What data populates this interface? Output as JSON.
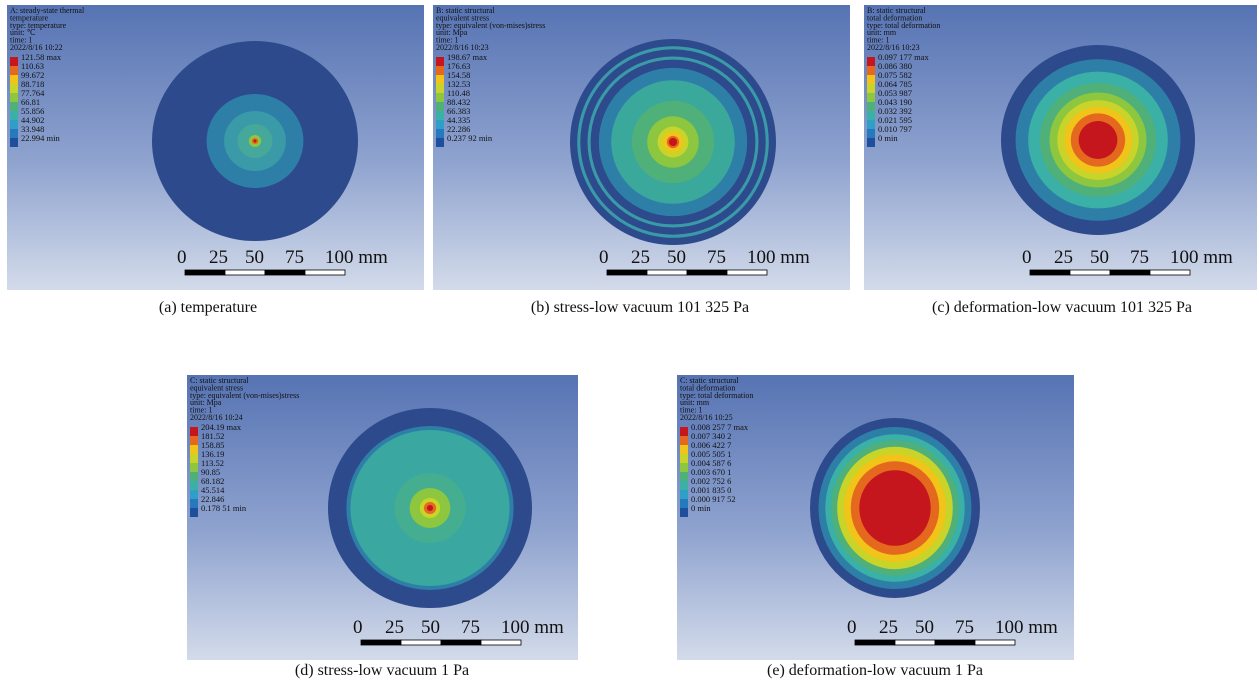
{
  "panels": [
    {
      "header": [
        "A: steady-state thermal",
        "temperature",
        "type: temperature",
        "unit: ℃",
        "time: 1",
        "2022/8/16 10:22"
      ],
      "legend": [
        "121.58 max",
        "110.63",
        "99.672",
        "88.718",
        "77.764",
        "66.81",
        "55.856",
        "44.902",
        "33.948",
        "22.994 min"
      ],
      "scale": [
        "0",
        "25",
        "50",
        "75",
        "100 mm"
      ],
      "caption": "(a) temperature"
    },
    {
      "header": [
        "B: static structural",
        "equivalent stress",
        "type: equivalent (von-mises)stress",
        "unit: Mpa",
        "time: 1",
        "2022/8/16 10:23"
      ],
      "legend": [
        "198.67 max",
        "176.63",
        "154.58",
        "132.53",
        "110.48",
        "88.432",
        "66.383",
        "44.335",
        "22.286",
        "0.237 92 min"
      ],
      "scale": [
        "0",
        "25",
        "50",
        "75",
        "100 mm"
      ],
      "caption": "(b) stress-low vacuum 101 325 Pa"
    },
    {
      "header": [
        "B: static structural",
        "total deformation",
        "type: total deformation",
        "unit: mm",
        "time: 1",
        "2022/8/16 10:23"
      ],
      "legend": [
        "0.097 177 max",
        "0.086 380",
        "0.075 582",
        "0.064 785",
        "0.053 987",
        "0.043 190",
        "0.032 392",
        "0.021 595",
        "0.010 797",
        "0 min"
      ],
      "scale": [
        "0",
        "25",
        "50",
        "75",
        "100 mm"
      ],
      "caption": "(c) deformation-low vacuum 101 325 Pa"
    },
    {
      "header": [
        "C: static structural",
        "equivalent stress",
        "type: equivalent (von-mises)stress",
        "unit: Mpa",
        "time: 1",
        "2022/8/16 10:24"
      ],
      "legend": [
        "204.19 max",
        "181.52",
        "158.85",
        "136.19",
        "113.52",
        "90.85",
        "68.182",
        "45.514",
        "22.846",
        "0.178 51 min"
      ],
      "scale": [
        "0",
        "25",
        "50",
        "75",
        "100 mm"
      ],
      "caption": "(d) stress-low vacuum 1 Pa"
    },
    {
      "header": [
        "C: static structural",
        "total deformation",
        "type: total deformation",
        "unit: mm",
        "time: 1",
        "2022/8/16 10:25"
      ],
      "legend": [
        "0.008 257 7 max",
        "0.007 340 2",
        "0.006 422 7",
        "0.005 505 1",
        "0.004 587 6",
        "0.003 670 1",
        "0.002 752 6",
        "0.001 835 0",
        "0.000 917 52",
        "0 min"
      ],
      "scale": [
        "0",
        "25",
        "50",
        "75",
        "100 mm"
      ],
      "caption": "(e) deformation-low vacuum 1 Pa"
    }
  ]
}
